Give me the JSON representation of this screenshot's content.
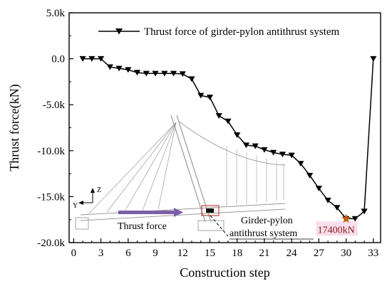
{
  "chart_data": {
    "type": "line",
    "xlabel": "Construction step",
    "ylabel": "Thrust force(kN)",
    "xlim": [
      -0.5,
      33.8
    ],
    "ylim": [
      -20000,
      5000
    ],
    "xticks": [
      0,
      3,
      6,
      9,
      12,
      15,
      18,
      21,
      24,
      27,
      30,
      33
    ],
    "yticks": [
      {
        "value": 5000,
        "label": "5.0k"
      },
      {
        "value": 0,
        "label": "0.0"
      },
      {
        "value": -5000,
        "label": "-5.0k"
      },
      {
        "value": -10000,
        "label": "-10.0k"
      },
      {
        "value": -15000,
        "label": "-15.0k"
      },
      {
        "value": -20000,
        "label": "-20.0k"
      }
    ],
    "legend_position": "top-right",
    "series": [
      {
        "name": "Thrust force of girder-pylon antithrust system",
        "marker": "down-triangle",
        "color": "#000000",
        "x": [
          1,
          2,
          3,
          4,
          5,
          6,
          7,
          8,
          9,
          10,
          11,
          12,
          13,
          14,
          15,
          16,
          17,
          18,
          19,
          20,
          21,
          22,
          23,
          24,
          25,
          26,
          27,
          28,
          29,
          30,
          31,
          32,
          33
        ],
        "y": [
          0,
          0,
          0,
          -900,
          -1050,
          -1200,
          -1500,
          -1600,
          -1600,
          -1600,
          -1600,
          -1650,
          -2200,
          -4000,
          -4200,
          -6200,
          -6800,
          -8300,
          -9400,
          -9500,
          -9900,
          -10200,
          -10400,
          -10500,
          -11400,
          -12700,
          -14100,
          -15400,
          -16200,
          -17400,
          -17400,
          -16600,
          0
        ]
      }
    ],
    "annotations": {
      "peak_label": "17400kN",
      "peak_point": {
        "x": 30,
        "y": -17400
      },
      "inset_labels": {
        "axis_z": "Z",
        "axis_y": "Y",
        "thrust_force": "Thrust force",
        "girder_pylon_line1": "Girder-pylon",
        "girder_pylon_line2": "antithrust system"
      }
    }
  },
  "colors": {
    "series": "#000000",
    "arrow": "#7b5ea7",
    "peak_star": "#c06010",
    "peak_text": "#8b1a1a",
    "peak_highlight": "#f6cfe3",
    "inset_line": "#9a9a9a",
    "inset_box": "#c0443a"
  }
}
